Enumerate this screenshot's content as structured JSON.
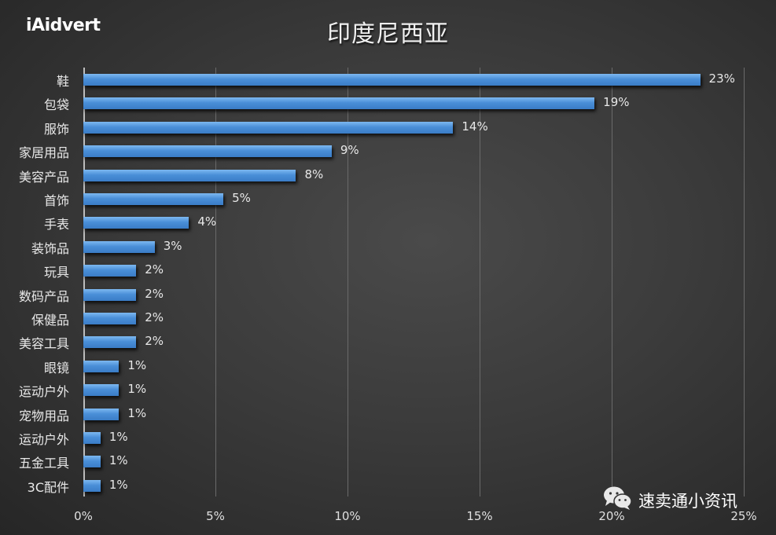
{
  "logo": {
    "text": "iAidvert"
  },
  "watermark": {
    "text": "速卖通小资讯",
    "icon": "wechat-icon"
  },
  "colors": {
    "bar": "#4a8fd8",
    "background": "#3b3b3b",
    "text": "#e8e8e8"
  },
  "chart_data": {
    "type": "bar",
    "orientation": "horizontal",
    "title": "印度尼西亚",
    "xlabel": "",
    "ylabel": "",
    "xlim": [
      0,
      25
    ],
    "x_ticks": [
      "0%",
      "5%",
      "10%",
      "15%",
      "20%",
      "25%"
    ],
    "grid": true,
    "legend": null,
    "categories": [
      "鞋",
      "包袋",
      "服饰",
      "家居用品",
      "美容产品",
      "首饰",
      "手表",
      "装饰品",
      "玩具",
      "数码产品",
      "保健品",
      "美容工具",
      "眼镜",
      "运动户外",
      "宠物用品",
      "运动户外",
      "五金工具",
      "3C配件"
    ],
    "values": [
      23.35,
      19.35,
      14.0,
      9.4,
      8.05,
      5.3,
      4.0,
      2.7,
      2.0,
      2.0,
      2.0,
      2.0,
      1.35,
      1.35,
      1.35,
      0.65,
      0.65,
      0.65
    ],
    "labels": [
      "23%",
      "19%",
      "14%",
      "9%",
      "8%",
      "5%",
      "4%",
      "3%",
      "2%",
      "2%",
      "2%",
      "2%",
      "1%",
      "1%",
      "1%",
      "1%",
      "1%",
      "1%"
    ]
  }
}
